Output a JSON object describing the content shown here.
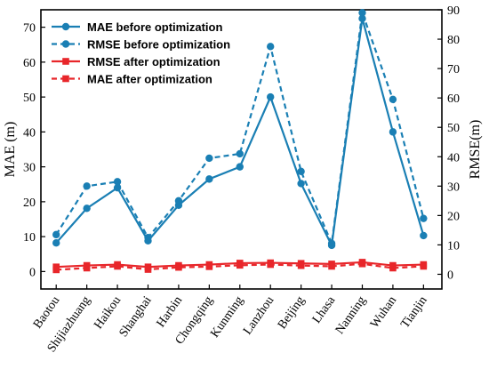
{
  "chart_data": {
    "type": "line",
    "categories": [
      "Baotou",
      "Shijiazhuang",
      "Haikou",
      "Shanghai",
      "Harbin",
      "Chongqing",
      "Kunming",
      "Lanzhou",
      "Beijing",
      "Lhasa",
      "Nanning",
      "Wuhan",
      "Tianjin"
    ],
    "ylabel_left": "MAE (m)",
    "ylabel_right": "RMSE(m)",
    "ylim_left": [
      -5,
      75
    ],
    "ylim_right": [
      -5,
      90
    ],
    "yticks_left": [
      0,
      10,
      20,
      30,
      40,
      50,
      60,
      70
    ],
    "yticks_right": [
      0,
      10,
      20,
      30,
      40,
      50,
      60,
      70,
      80,
      90
    ],
    "grid": false,
    "legend_position": "top-left",
    "series": [
      {
        "name": "MAE before optimization",
        "axis": "left",
        "color": "#1a7fb4",
        "dash": false,
        "marker": "circle",
        "values": [
          8.2,
          18.1,
          24.0,
          8.8,
          19.0,
          26.5,
          30.0,
          50.0,
          25.2,
          7.5,
          72.5,
          40.0,
          10.3
        ]
      },
      {
        "name": "RMSE before optimization",
        "axis": "right",
        "color": "#1a7fb4",
        "dash": true,
        "marker": "circle",
        "values": [
          13.5,
          30.0,
          31.5,
          12.5,
          25.0,
          39.5,
          41.0,
          77.5,
          35.0,
          10.5,
          89.0,
          59.5,
          19.0
        ]
      },
      {
        "name": "RMSE after optimization",
        "axis": "right",
        "color": "#e8262a",
        "dash": false,
        "marker": "square",
        "values": [
          2.5,
          3.0,
          3.3,
          2.5,
          3.0,
          3.3,
          3.8,
          3.9,
          3.7,
          3.5,
          4.1,
          3.0,
          3.3
        ]
      },
      {
        "name": "MAE after optimization",
        "axis": "left",
        "color": "#e8262a",
        "dash": true,
        "marker": "square",
        "values": [
          0.5,
          1.0,
          1.5,
          0.6,
          1.2,
          1.4,
          1.8,
          2.0,
          1.7,
          1.5,
          2.2,
          1.0,
          1.5
        ]
      }
    ]
  }
}
